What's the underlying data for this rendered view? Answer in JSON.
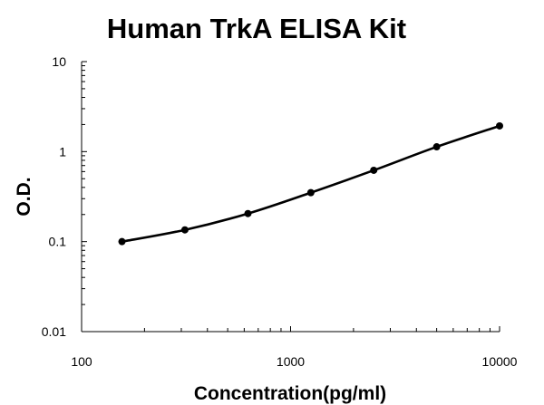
{
  "chart_data": {
    "type": "line",
    "title": "Human TrkA ELISA Kit",
    "xlabel": "Concentration(pg/ml)",
    "ylabel": "O.D.",
    "x_scale": "log",
    "y_scale": "log",
    "xlim": [
      100,
      10000
    ],
    "ylim": [
      0.01,
      10
    ],
    "x_ticks": [
      "100",
      "1000",
      "10000"
    ],
    "y_ticks": [
      "10",
      "1",
      "0.1",
      "0.01"
    ],
    "grid": false,
    "legend": "none",
    "line_color": "#000000",
    "series": [
      {
        "x": [
          156,
          312,
          625,
          1250,
          2500,
          5000,
          10000
        ],
        "y": [
          0.1,
          0.135,
          0.205,
          0.35,
          0.62,
          1.13,
          1.93
        ]
      }
    ]
  }
}
